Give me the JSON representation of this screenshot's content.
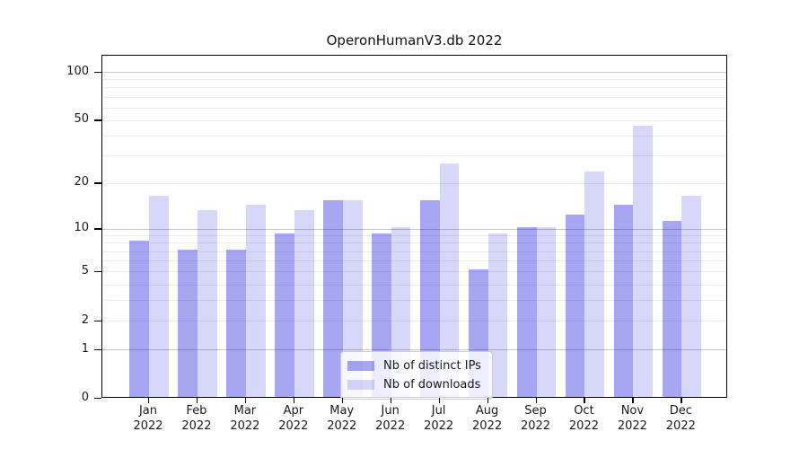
{
  "chart_data": {
    "type": "bar",
    "title": "OperonHumanV3.db 2022",
    "categories": [
      "Jan 2022",
      "Feb 2022",
      "Mar 2022",
      "Apr 2022",
      "May 2022",
      "Jun 2022",
      "Jul 2022",
      "Aug 2022",
      "Sep 2022",
      "Oct 2022",
      "Nov 2022",
      "Dec 2022"
    ],
    "series": [
      {
        "name": "Nb of distinct IPs",
        "values": [
          8,
          7,
          7,
          9,
          15,
          9,
          15,
          5,
          10,
          12,
          14,
          11
        ]
      },
      {
        "name": "Nb of downloads",
        "values": [
          16,
          13,
          14,
          13,
          15,
          10,
          26,
          9,
          10,
          23,
          45,
          16
        ]
      }
    ],
    "yscale": "symlog-log1p",
    "yticks": [
      0,
      1,
      2,
      5,
      10,
      20,
      50,
      100
    ],
    "major_grid_values": [
      1,
      10,
      100
    ],
    "ylim": [
      0,
      126
    ],
    "xlabel": "",
    "ylabel": "",
    "grid": true,
    "legend_position": "inside-bottom-center",
    "colors": {
      "ips": "rgba(8,8,218,0.36)",
      "downloads": "rgba(8,8,218,0.16)",
      "ips_hex_on_white": "#a6a6f2",
      "downloads_hex_on_white": "#d8d8f9",
      "major_grid": "#c6c6c6",
      "minor_grid": "#ebebeb",
      "axis": "#000000"
    }
  }
}
